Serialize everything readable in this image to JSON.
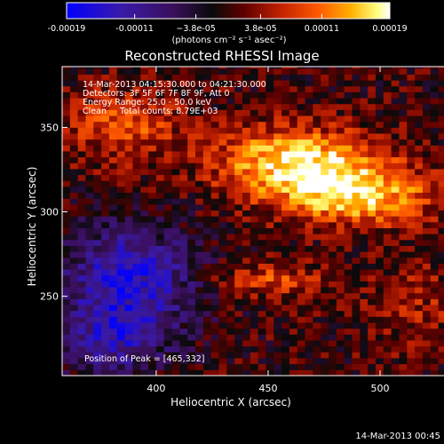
{
  "chart_data": {
    "type": "heatmap",
    "title": "Reconstructed RHESSI Image",
    "xlabel": "Heliocentric X (arcsec)",
    "ylabel": "Heliocentric Y (arcsec)",
    "xlim": [
      358,
      546
    ],
    "ylim": [
      203,
      386
    ],
    "xticks": [
      400,
      450,
      500
    ],
    "yticks": [
      250,
      300,
      350
    ],
    "colorbar": {
      "range": [
        -0.00019,
        0.00019
      ],
      "tick_values": [
        -0.00019,
        -0.00011,
        -3.8e-05,
        3.8e-05,
        0.00011,
        0.00019
      ],
      "tick_labels": [
        "-0.00019",
        "-0.00011",
        "−3.8e-05",
        "3.8e-05",
        "0.00011",
        "0.00019"
      ],
      "unit_label": "(photons cm⁻² s⁻¹ asec⁻²)",
      "colormap": [
        "#0000ff",
        "#3a1aa8",
        "#3a0f5a",
        "#0a0a0a",
        "#600000",
        "#c02000",
        "#ff5a00",
        "#ffb000",
        "#ffff80",
        "#ffffff"
      ]
    },
    "info_lines": [
      "14-Mar-2013 04:15:30.000 to 04:21:30.000",
      "Detectors: 3F 5F 6F 7F 8F 9F, Att 0",
      "Energy Range: 25.0 - 50.0 keV",
      "Clean     Total counts: 8.79E+03"
    ],
    "peak_label": "Position of Peak = [465,332]",
    "peak_position": [
      465,
      332
    ],
    "peak_value": 0.00019,
    "emission_regions": [
      {
        "name": "main ribbon upper",
        "center": [
          462,
          330
        ],
        "radius": [
          35,
          20
        ],
        "value": 0.00017
      },
      {
        "name": "main ribbon lower",
        "center": [
          490,
          310
        ],
        "radius": [
          35,
          18
        ],
        "value": 0.00015
      },
      {
        "name": "upper left",
        "center": [
          385,
          352
        ],
        "radius": [
          25,
          22
        ],
        "value": 9e-05
      },
      {
        "name": "lower center",
        "center": [
          450,
          260
        ],
        "radius": [
          25,
          10
        ],
        "value": 8e-05
      },
      {
        "name": "lower right",
        "center": [
          515,
          245
        ],
        "radius": [
          20,
          25
        ],
        "value": 5e-05
      }
    ],
    "negative_regions": [
      {
        "name": "lower left",
        "center": [
          388,
          262
        ],
        "radius": [
          30,
          30
        ],
        "value": -0.00015
      },
      {
        "name": "bottom left",
        "center": [
          380,
          225
        ],
        "radius": [
          25,
          20
        ],
        "value": -0.00011
      }
    ],
    "timestamp": "14-Mar-2013 00:45"
  }
}
